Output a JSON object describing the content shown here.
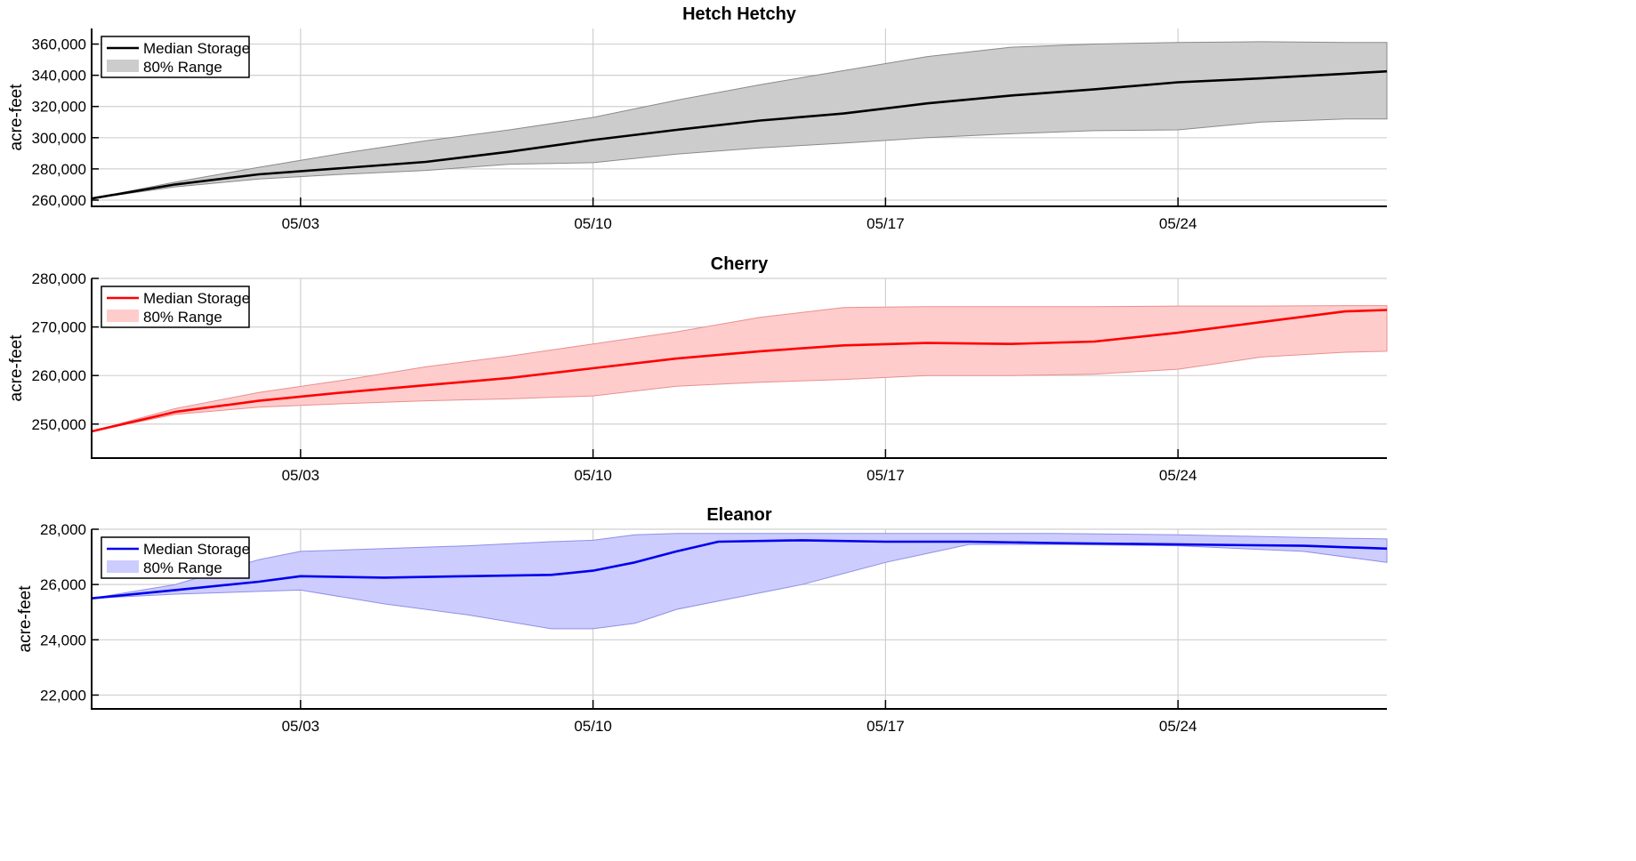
{
  "chart_data": [
    {
      "type": "line",
      "title": "Hetch Hetchy",
      "ylabel": "acre-feet",
      "xlabel": "",
      "x_range": [
        "2025-04-28",
        "2025-05-29"
      ],
      "x_ticks": [
        "05/03",
        "05/10",
        "05/17",
        "05/24"
      ],
      "ylim": [
        256000,
        370000
      ],
      "y_ticks": [
        "260,000",
        "280,000",
        "300,000",
        "320,000",
        "340,000",
        "360,000"
      ],
      "grid": true,
      "legend": "top-left",
      "colors": {
        "line": "#000000",
        "band": "#cccccc",
        "band_edge": "#8a8a8a"
      },
      "series": [
        {
          "name": "Median Storage",
          "x": [
            "2025-04-28",
            "2025-04-30",
            "2025-05-02",
            "2025-05-04",
            "2025-05-06",
            "2025-05-08",
            "2025-05-10",
            "2025-05-12",
            "2025-05-14",
            "2025-05-16",
            "2025-05-18",
            "2025-05-20",
            "2025-05-22",
            "2025-05-24",
            "2025-05-26",
            "2025-05-28",
            "2025-05-29"
          ],
          "values": [
            261000,
            270000,
            276500,
            280500,
            284500,
            291000,
            298500,
            305000,
            311000,
            315500,
            322000,
            327000,
            331000,
            335500,
            338000,
            341000,
            342500
          ]
        },
        {
          "name": "80% Range",
          "kind": "band",
          "x": [
            "2025-04-28",
            "2025-04-30",
            "2025-05-02",
            "2025-05-04",
            "2025-05-06",
            "2025-05-08",
            "2025-05-10",
            "2025-05-12",
            "2025-05-14",
            "2025-05-16",
            "2025-05-18",
            "2025-05-20",
            "2025-05-22",
            "2025-05-24",
            "2025-05-26",
            "2025-05-28",
            "2025-05-29"
          ],
          "low": [
            261000,
            268500,
            273500,
            276500,
            279000,
            283000,
            284000,
            289500,
            293500,
            296500,
            300000,
            302500,
            304500,
            305000,
            310000,
            312000,
            312000
          ],
          "high": [
            261000,
            271500,
            281000,
            290000,
            298000,
            305000,
            313000,
            324000,
            334000,
            343000,
            352000,
            358000,
            360000,
            361000,
            361500,
            361000,
            361000
          ]
        }
      ]
    },
    {
      "type": "line",
      "title": "Cherry",
      "ylabel": "acre-feet",
      "xlabel": "",
      "x_range": [
        "2025-04-28",
        "2025-05-29"
      ],
      "x_ticks": [
        "05/03",
        "05/10",
        "05/17",
        "05/24"
      ],
      "ylim": [
        243000,
        280000
      ],
      "y_ticks": [
        "250,000",
        "260,000",
        "270,000",
        "280,000"
      ],
      "grid": true,
      "legend": "top-left",
      "colors": {
        "line": "#ff0000",
        "band": "#ffcccc",
        "band_edge": "#e88f8f"
      },
      "series": [
        {
          "name": "Median Storage",
          "x": [
            "2025-04-28",
            "2025-04-30",
            "2025-05-02",
            "2025-05-04",
            "2025-05-06",
            "2025-05-08",
            "2025-05-10",
            "2025-05-12",
            "2025-05-14",
            "2025-05-16",
            "2025-05-18",
            "2025-05-20",
            "2025-05-22",
            "2025-05-24",
            "2025-05-26",
            "2025-05-28",
            "2025-05-29"
          ],
          "values": [
            248500,
            252500,
            254800,
            256500,
            258000,
            259500,
            261500,
            263500,
            265000,
            266200,
            266700,
            266500,
            267000,
            268800,
            271000,
            273200,
            273500
          ]
        },
        {
          "name": "80% Range",
          "kind": "band",
          "x": [
            "2025-04-28",
            "2025-04-30",
            "2025-05-02",
            "2025-05-04",
            "2025-05-06",
            "2025-05-08",
            "2025-05-10",
            "2025-05-12",
            "2025-05-14",
            "2025-05-16",
            "2025-05-18",
            "2025-05-20",
            "2025-05-22",
            "2025-05-24",
            "2025-05-26",
            "2025-05-28",
            "2025-05-29"
          ],
          "low": [
            248500,
            252000,
            253500,
            254200,
            254800,
            255200,
            255800,
            257800,
            258600,
            259200,
            260000,
            260000,
            260300,
            261300,
            263800,
            264800,
            265000
          ],
          "high": [
            248500,
            253200,
            256500,
            259000,
            261800,
            264000,
            266500,
            269000,
            272000,
            274000,
            274200,
            274200,
            274200,
            274300,
            274300,
            274400,
            274400
          ]
        }
      ]
    },
    {
      "type": "line",
      "title": "Eleanor",
      "ylabel": "acre-feet",
      "xlabel": "",
      "x_range": [
        "2025-04-28",
        "2025-05-29"
      ],
      "x_ticks": [
        "05/03",
        "05/10",
        "05/17",
        "05/24"
      ],
      "ylim": [
        21500,
        28000
      ],
      "y_ticks": [
        "22,000",
        "24,000",
        "26,000",
        "28,000"
      ],
      "grid": true,
      "legend": "top-left",
      "colors": {
        "line": "#0000ee",
        "band": "#ccccff",
        "band_edge": "#8f8fe6"
      },
      "series": [
        {
          "name": "Median Storage",
          "x": [
            "2025-04-28",
            "2025-04-30",
            "2025-05-02",
            "2025-05-03",
            "2025-05-05",
            "2025-05-07",
            "2025-05-09",
            "2025-05-10",
            "2025-05-11",
            "2025-05-12",
            "2025-05-13",
            "2025-05-15",
            "2025-05-17",
            "2025-05-19",
            "2025-05-21",
            "2025-05-24",
            "2025-05-27",
            "2025-05-29"
          ],
          "values": [
            25500,
            25800,
            26100,
            26300,
            26250,
            26300,
            26350,
            26500,
            26800,
            27200,
            27550,
            27600,
            27550,
            27550,
            27500,
            27450,
            27400,
            27300
          ]
        },
        {
          "name": "80% Range",
          "kind": "band",
          "x": [
            "2025-04-28",
            "2025-04-30",
            "2025-05-02",
            "2025-05-03",
            "2025-05-05",
            "2025-05-07",
            "2025-05-09",
            "2025-05-10",
            "2025-05-11",
            "2025-05-12",
            "2025-05-13",
            "2025-05-15",
            "2025-05-17",
            "2025-05-19",
            "2025-05-21",
            "2025-05-24",
            "2025-05-27",
            "2025-05-29"
          ],
          "low": [
            25500,
            25650,
            25750,
            25800,
            25300,
            24900,
            24400,
            24400,
            24600,
            25100,
            25400,
            26000,
            26800,
            27450,
            27450,
            27400,
            27200,
            26800
          ],
          "high": [
            25500,
            26000,
            26900,
            27200,
            27300,
            27400,
            27550,
            27600,
            27800,
            27850,
            27850,
            27850,
            27850,
            27850,
            27850,
            27800,
            27700,
            27650
          ]
        }
      ]
    }
  ]
}
